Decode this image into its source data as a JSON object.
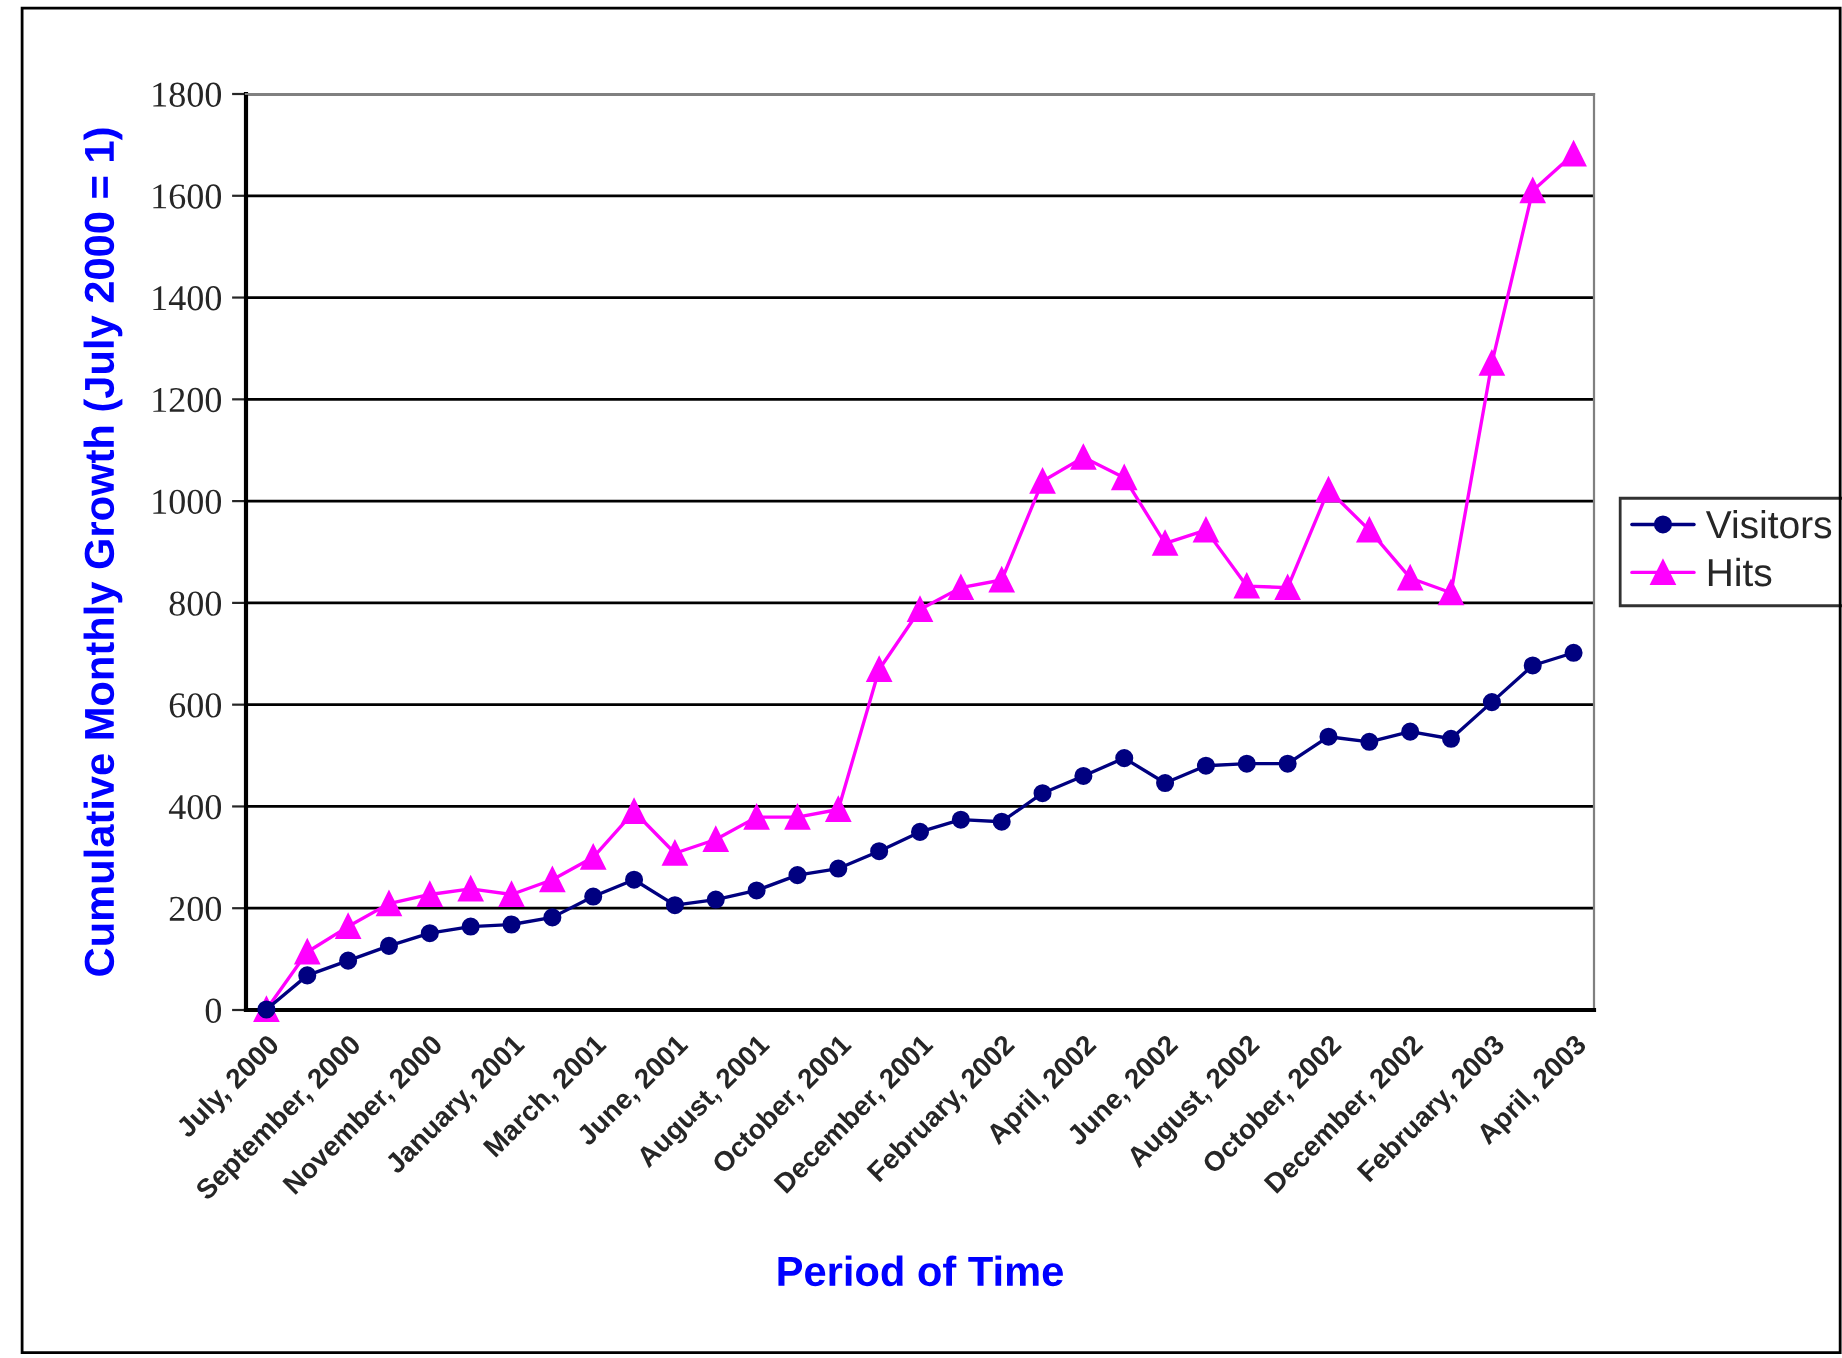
{
  "chart_data": {
    "type": "line",
    "xlabel": "Period of Time",
    "ylabel": "Cumulative Monthly Growth (July 2000 = 1)",
    "categories": [
      "July, 2000",
      null,
      "September, 2000",
      null,
      "November, 2000",
      null,
      "January, 2001",
      null,
      "March, 2001",
      null,
      "June, 2001",
      null,
      "August, 2001",
      null,
      "October, 2001",
      null,
      "December, 2001",
      null,
      "February, 2002",
      null,
      "April, 2002",
      null,
      "June, 2002",
      null,
      "August, 2002",
      null,
      "October, 2002",
      null,
      "December, 2002",
      null,
      "February, 2003",
      null,
      "April, 2003"
    ],
    "series": [
      {
        "name": "Visitors",
        "color": "#000080",
        "marker": "circle",
        "values": [
          1,
          68,
          97,
          126,
          151,
          164,
          168,
          182,
          223,
          256,
          206,
          217,
          235,
          265,
          278,
          312,
          350,
          374,
          370,
          426,
          460,
          495,
          446,
          480,
          484,
          484,
          537,
          527,
          547,
          533,
          605,
          677,
          702
        ]
      },
      {
        "name": "Hits",
        "color": "#ff00ff",
        "marker": "triangle",
        "values": [
          1,
          114,
          164,
          209,
          227,
          238,
          227,
          256,
          300,
          390,
          308,
          335,
          379,
          379,
          394,
          669,
          787,
          830,
          845,
          1039,
          1086,
          1046,
          917,
          943,
          833,
          830,
          1022,
          943,
          849,
          820,
          1271,
          1610,
          1682
        ]
      }
    ],
    "ylim": [
      0,
      1800
    ],
    "yticks": [
      0,
      200,
      400,
      600,
      800,
      1000,
      1200,
      1400,
      1600,
      1800
    ],
    "grid": "y",
    "legend": "right",
    "line_style": "solid"
  }
}
